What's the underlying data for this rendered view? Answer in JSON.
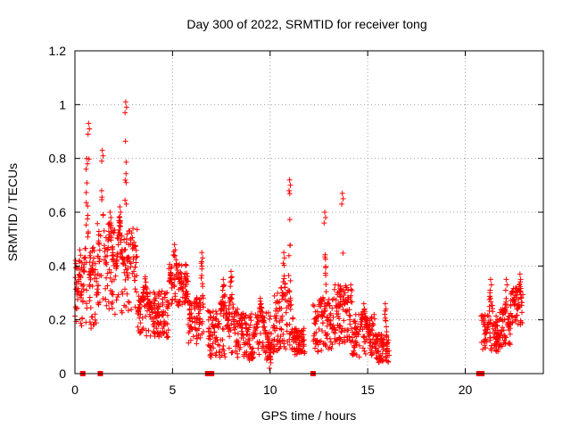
{
  "chart_data": {
    "type": "scatter",
    "title": "Day 300 of 2022, SRMTID for receiver tong",
    "xlabel": "GPS time / hours",
    "ylabel": "SRMTID / TECUs",
    "xlim": [
      0,
      24
    ],
    "ylim": [
      0,
      1.2
    ],
    "xticks": [
      0,
      5,
      10,
      15,
      20
    ],
    "yticks": [
      0,
      0.2,
      0.4,
      0.6,
      0.8,
      1,
      1.2
    ],
    "ytick_labels": [
      "0",
      "0.2",
      "0.4",
      "0.6",
      "0.8",
      "1",
      "1.2"
    ],
    "grid": true,
    "marker": "plus",
    "series_color": "#ff0000",
    "zero_markers_x": [
      0.4,
      1.3,
      6.8,
      7.0,
      12.2,
      20.7,
      20.85
    ],
    "clusters": [
      {
        "x": [
          0.0,
          0.45
        ],
        "base": 0.3,
        "spread": 0.14,
        "peaks": [
          [
            0.25,
            0.46,
            0.1
          ]
        ]
      },
      {
        "x": [
          0.45,
          1.1
        ],
        "base": 0.32,
        "spread": 0.16,
        "peaks": [
          [
            0.7,
            0.93,
            0.08
          ],
          [
            0.6,
            0.8,
            0.15
          ]
        ]
      },
      {
        "x": [
          1.1,
          2.0
        ],
        "base": 0.4,
        "spread": 0.16,
        "peaks": [
          [
            1.4,
            0.83,
            0.15
          ],
          [
            1.8,
            0.6,
            0.2
          ]
        ]
      },
      {
        "x": [
          2.0,
          3.2
        ],
        "base": 0.38,
        "spread": 0.16,
        "peaks": [
          [
            2.6,
            1.01,
            0.07
          ],
          [
            2.3,
            0.62,
            0.2
          ]
        ]
      },
      {
        "x": [
          3.2,
          4.8
        ],
        "base": 0.22,
        "spread": 0.09,
        "peaks": [
          [
            3.6,
            0.36,
            0.4
          ]
        ]
      },
      {
        "x": [
          4.8,
          5.8
        ],
        "base": 0.33,
        "spread": 0.08,
        "peaks": [
          [
            5.1,
            0.48,
            0.3
          ]
        ]
      },
      {
        "x": [
          5.8,
          6.6
        ],
        "base": 0.2,
        "spread": 0.09,
        "peaks": [
          [
            6.5,
            0.45,
            0.1
          ]
        ]
      },
      {
        "x": [
          6.8,
          8.6
        ],
        "base": 0.15,
        "spread": 0.09,
        "peaks": [
          [
            7.6,
            0.35,
            0.3
          ],
          [
            8.0,
            0.38,
            0.2
          ]
        ]
      },
      {
        "x": [
          8.6,
          10.2
        ],
        "base": 0.14,
        "spread": 0.09,
        "peaks": [
          [
            9.5,
            0.28,
            0.3
          ],
          [
            10.0,
            0.06,
            0.15
          ]
        ]
      },
      {
        "x": [
          10.2,
          11.2
        ],
        "base": 0.2,
        "spread": 0.12,
        "peaks": [
          [
            11.0,
            0.72,
            0.08
          ],
          [
            10.7,
            0.45,
            0.15
          ]
        ]
      },
      {
        "x": [
          11.2,
          11.8
        ],
        "base": 0.12,
        "spread": 0.05,
        "peaks": []
      },
      {
        "x": [
          12.2,
          13.2
        ],
        "base": 0.18,
        "spread": 0.1,
        "peaks": [
          [
            12.8,
            0.6,
            0.12
          ]
        ]
      },
      {
        "x": [
          13.2,
          14.2
        ],
        "base": 0.22,
        "spread": 0.11,
        "peaks": [
          [
            13.7,
            0.67,
            0.1
          ]
        ]
      },
      {
        "x": [
          14.2,
          15.4
        ],
        "base": 0.14,
        "spread": 0.08,
        "peaks": [
          [
            14.8,
            0.26,
            0.3
          ]
        ]
      },
      {
        "x": [
          15.4,
          16.1
        ],
        "base": 0.1,
        "spread": 0.06,
        "peaks": [
          [
            15.9,
            0.26,
            0.1
          ]
        ]
      },
      {
        "x": [
          20.8,
          21.7
        ],
        "base": 0.15,
        "spread": 0.07,
        "peaks": [
          [
            21.3,
            0.35,
            0.2
          ]
        ]
      },
      {
        "x": [
          21.7,
          22.3
        ],
        "base": 0.17,
        "spread": 0.07,
        "peaks": [
          [
            22.1,
            0.35,
            0.1
          ]
        ]
      },
      {
        "x": [
          22.3,
          22.95
        ],
        "base": 0.25,
        "spread": 0.07,
        "peaks": [
          [
            22.8,
            0.37,
            0.1
          ]
        ]
      }
    ]
  }
}
